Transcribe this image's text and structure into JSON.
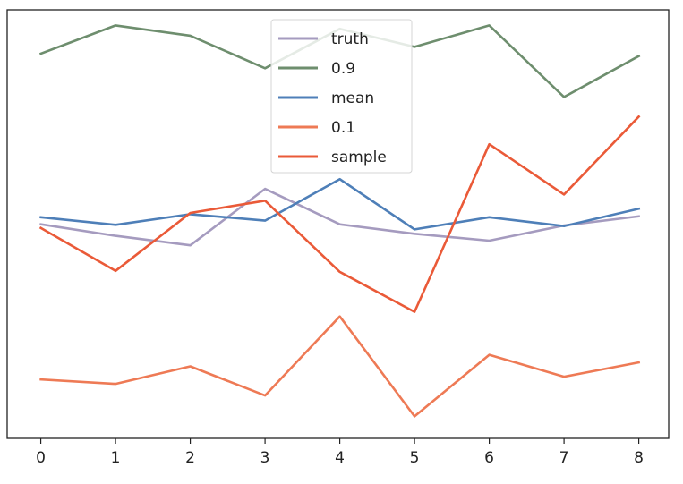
{
  "chart_data": {
    "type": "line",
    "title": "",
    "xlabel": "",
    "ylabel": "",
    "x": [
      0,
      1,
      2,
      3,
      4,
      5,
      6,
      7,
      8
    ],
    "xlim": [
      -0.45,
      8.4
    ],
    "ylim": [
      0,
      1
    ],
    "grid": false,
    "legend_position": "top-center",
    "x_tick_labels": [
      "0",
      "1",
      "2",
      "3",
      "4",
      "5",
      "6",
      "7",
      "8"
    ],
    "series": [
      {
        "name": "truth",
        "color": "#a59bbf",
        "values": [
          0.4996,
          0.4727,
          0.4505,
          0.5822,
          0.4996,
          0.4775,
          0.4613,
          0.4968,
          0.5182
        ]
      },
      {
        "name": "0.9",
        "color": "#6e8e6e",
        "values": [
          0.8978,
          0.9637,
          0.9397,
          0.8636,
          0.9557,
          0.9136,
          0.9637,
          0.7967,
          0.892
        ]
      },
      {
        "name": "mean",
        "color": "#4e7fb8",
        "values": [
          0.516,
          0.4984,
          0.5231,
          0.5081,
          0.605,
          0.4876,
          0.5161,
          0.4955,
          0.5359
        ]
      },
      {
        "name": "0.1",
        "color": "#ee7a55",
        "values": [
          0.1374,
          0.1272,
          0.1681,
          0.1,
          0.2846,
          0.0513,
          0.195,
          0.1439,
          0.1773
        ]
      },
      {
        "name": "sample",
        "color": "#ea5a38",
        "values": [
          0.491,
          0.3908,
          0.5261,
          0.5547,
          0.3886,
          0.2952,
          0.6864,
          0.5692,
          0.7508
        ]
      }
    ]
  }
}
